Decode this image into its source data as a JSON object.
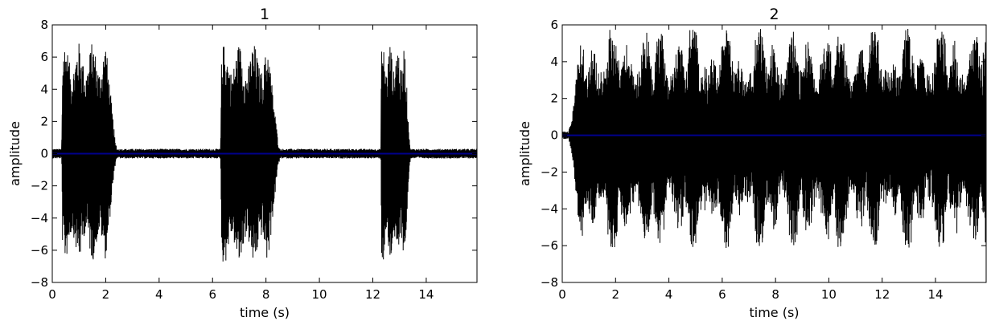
{
  "chart_data": [
    {
      "type": "line",
      "title": "1",
      "xlabel": "time (s)",
      "ylabel": "amplitude",
      "xlim": [
        0,
        15.9
      ],
      "ylim": [
        -8,
        8
      ],
      "xticks": [
        0,
        2,
        4,
        6,
        8,
        10,
        12,
        14
      ],
      "yticks": [
        -8,
        -6,
        -4,
        -2,
        0,
        2,
        4,
        6,
        8
      ],
      "grid": false,
      "series": [
        {
          "color": "#000000",
          "style": "waveform",
          "segments": [
            {
              "start": 0.35,
              "end": 2.4,
              "peak_pos": 7.1,
              "peak_neg": -6.8
            },
            {
              "start": 6.3,
              "end": 8.5,
              "peak_pos": 7.0,
              "peak_neg": -7.1
            },
            {
              "start": 12.3,
              "end": 13.4,
              "peak_pos": 7.1,
              "peak_neg": -7.1
            }
          ],
          "noise_floor": 0.3
        },
        {
          "color": "#00008b",
          "style": "baseline",
          "y": 0
        }
      ]
    },
    {
      "type": "line",
      "title": "2",
      "xlabel": "time (s)",
      "ylabel": "amplitude",
      "xlim": [
        0,
        15.9
      ],
      "ylim": [
        -8,
        6
      ],
      "xticks": [
        0,
        2,
        4,
        6,
        8,
        10,
        12,
        14
      ],
      "yticks": [
        -8,
        -6,
        -4,
        -2,
        0,
        2,
        4,
        6
      ],
      "grid": false,
      "series": [
        {
          "color": "#000000",
          "style": "waveform",
          "segments": [
            {
              "start": 0.2,
              "end": 15.9,
              "peak_pos": 5.8,
              "peak_neg": -6.2
            }
          ],
          "noise_floor": 0.2
        },
        {
          "color": "#00008b",
          "style": "baseline",
          "y": 0
        }
      ]
    }
  ]
}
